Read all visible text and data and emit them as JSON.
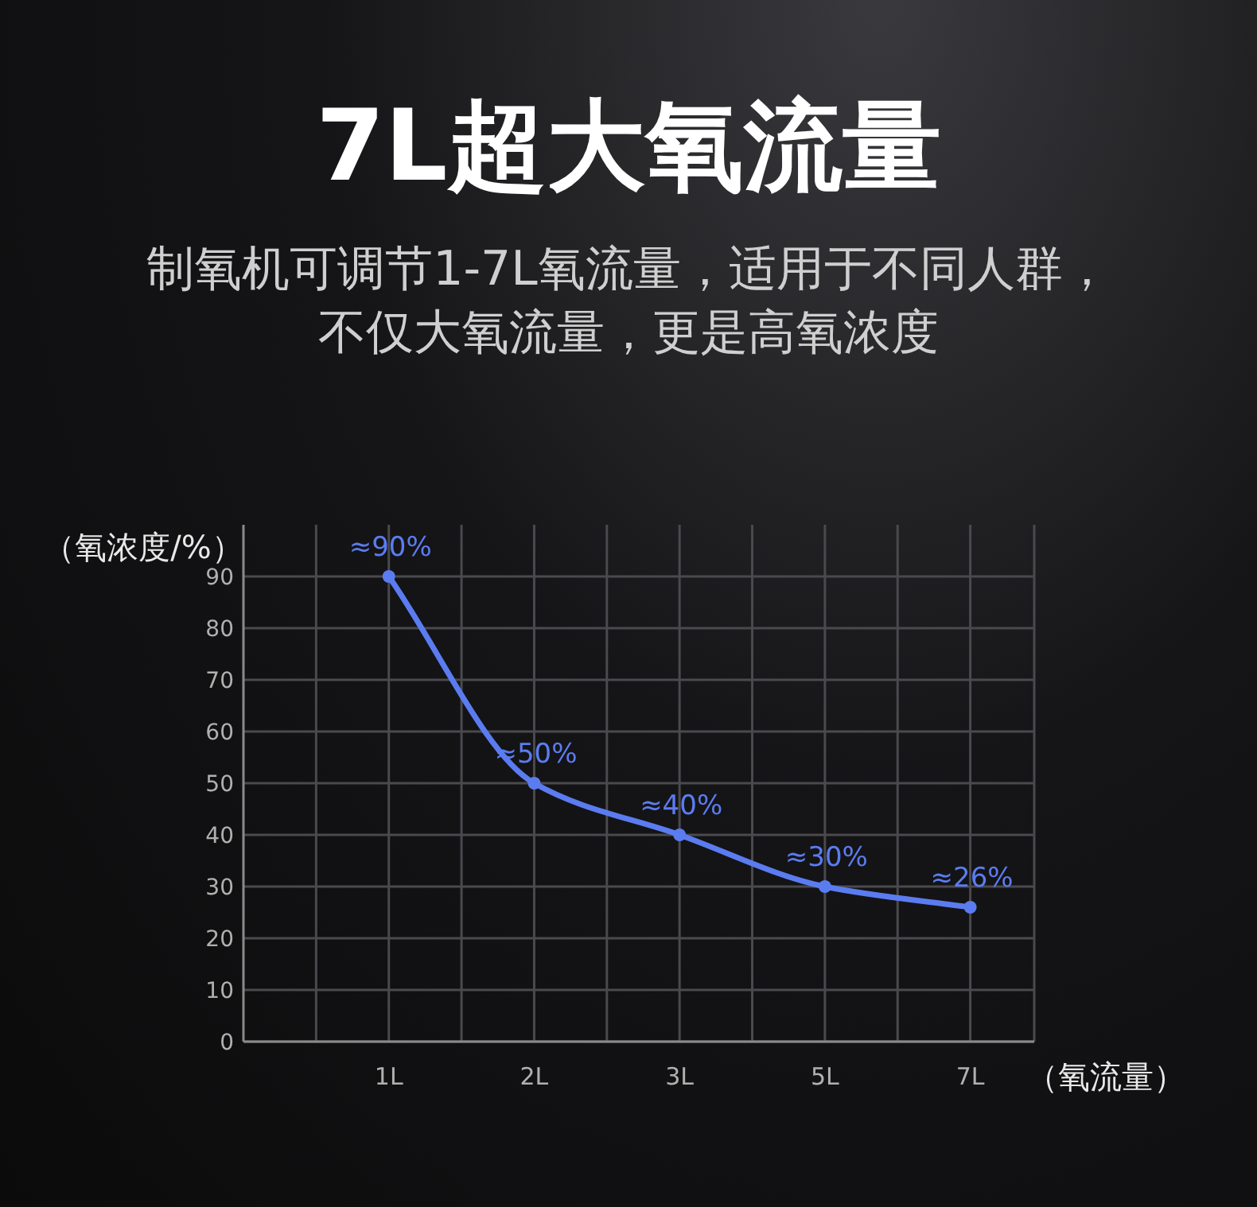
{
  "chart_data": {
    "type": "line",
    "title": "7L超大氧流量",
    "subtitle": "制氧机可调节1-7L氧流量，适用于不同人群，不仅大氧流量，更是高氧浓度",
    "xlabel": "（氧流量）",
    "ylabel": "（氧浓度/%）",
    "categories": [
      "1L",
      "2L",
      "3L",
      "5L",
      "7L"
    ],
    "series": [
      {
        "color": "#5b7cf0",
        "values": [
          90,
          50,
          40,
          30,
          26
        ],
        "value_labels": [
          "≈90%",
          "≈50%",
          "≈40%",
          "≈30%",
          "≈26%"
        ]
      }
    ],
    "ylim": [
      0,
      100
    ],
    "yticks": [
      0,
      10,
      20,
      30,
      40,
      50,
      60,
      70,
      80,
      90
    ],
    "grid": true,
    "marker": "circle",
    "line_style": "solid"
  }
}
